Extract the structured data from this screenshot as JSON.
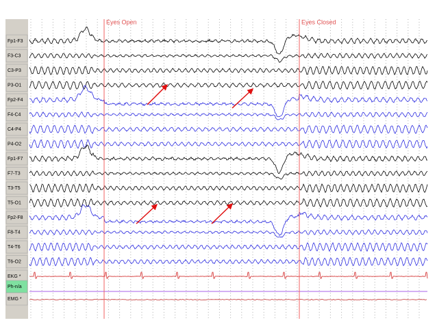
{
  "channels": [
    {
      "label": "Fp1-F3",
      "color": "#000000"
    },
    {
      "label": "F3-C3",
      "color": "#000000"
    },
    {
      "label": "C3-P3",
      "color": "#000000"
    },
    {
      "label": "P3-O1",
      "color": "#000000"
    },
    {
      "label": "Fp2-F4",
      "color": "#2a2ae0"
    },
    {
      "label": "F4-C4",
      "color": "#2a2ae0"
    },
    {
      "label": "C4-P4",
      "color": "#2a2ae0"
    },
    {
      "label": "P4-O2",
      "color": "#2a2ae0"
    },
    {
      "label": "Fp1-F7",
      "color": "#000000"
    },
    {
      "label": "F7-T3",
      "color": "#000000"
    },
    {
      "label": "T3-T5",
      "color": "#000000"
    },
    {
      "label": "T5-O1",
      "color": "#000000"
    },
    {
      "label": "Fp2-F8",
      "color": "#2a2ae0"
    },
    {
      "label": "F8-T4",
      "color": "#2a2ae0"
    },
    {
      "label": "T4-T6",
      "color": "#2a2ae0"
    },
    {
      "label": "T6-O2",
      "color": "#2a2ae0"
    },
    {
      "label": "EKG *",
      "color": "#d02020"
    },
    {
      "label": "Ph-n/a",
      "color": "#8a2be2"
    },
    {
      "label": "EMG *",
      "color": "#c03030"
    }
  ],
  "events": [
    {
      "label": "Eyes Open"
    },
    {
      "label": "Eyes Closed"
    }
  ]
}
